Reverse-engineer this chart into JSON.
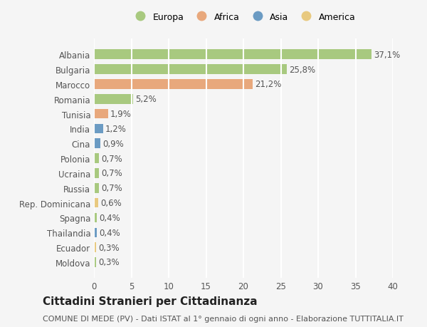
{
  "countries": [
    "Albania",
    "Bulgaria",
    "Marocco",
    "Romania",
    "Tunisia",
    "India",
    "Cina",
    "Polonia",
    "Ucraina",
    "Russia",
    "Rep. Dominicana",
    "Spagna",
    "Thailandia",
    "Ecuador",
    "Moldova"
  ],
  "values": [
    37.1,
    25.8,
    21.2,
    5.2,
    1.9,
    1.2,
    0.9,
    0.7,
    0.7,
    0.7,
    0.6,
    0.4,
    0.4,
    0.3,
    0.3
  ],
  "labels": [
    "37,1%",
    "25,8%",
    "21,2%",
    "5,2%",
    "1,9%",
    "1,2%",
    "0,9%",
    "0,7%",
    "0,7%",
    "0,7%",
    "0,6%",
    "0,4%",
    "0,4%",
    "0,3%",
    "0,3%"
  ],
  "continents": [
    "Europa",
    "Europa",
    "Africa",
    "Europa",
    "Africa",
    "Asia",
    "Asia",
    "Europa",
    "Europa",
    "Europa",
    "America",
    "Europa",
    "Asia",
    "America",
    "Europa"
  ],
  "continent_colors": {
    "Europa": "#a8c97f",
    "Africa": "#e8a87c",
    "Asia": "#6b9bc3",
    "America": "#e8c97f"
  },
  "legend_items": [
    "Europa",
    "Africa",
    "Asia",
    "America"
  ],
  "legend_colors": [
    "#a8c97f",
    "#e8a87c",
    "#6b9bc3",
    "#e8c97f"
  ],
  "title": "Cittadini Stranieri per Cittadinanza",
  "subtitle": "COMUNE DI MEDE (PV) - Dati ISTAT al 1° gennaio di ogni anno - Elaborazione TUTTITALIA.IT",
  "xlim": [
    0,
    40
  ],
  "xticks": [
    0,
    5,
    10,
    15,
    20,
    25,
    30,
    35,
    40
  ],
  "background_color": "#f5f5f5",
  "grid_color": "#ffffff",
  "bar_height": 0.65,
  "label_fontsize": 8.5,
  "tick_fontsize": 8.5,
  "title_fontsize": 11,
  "subtitle_fontsize": 8
}
